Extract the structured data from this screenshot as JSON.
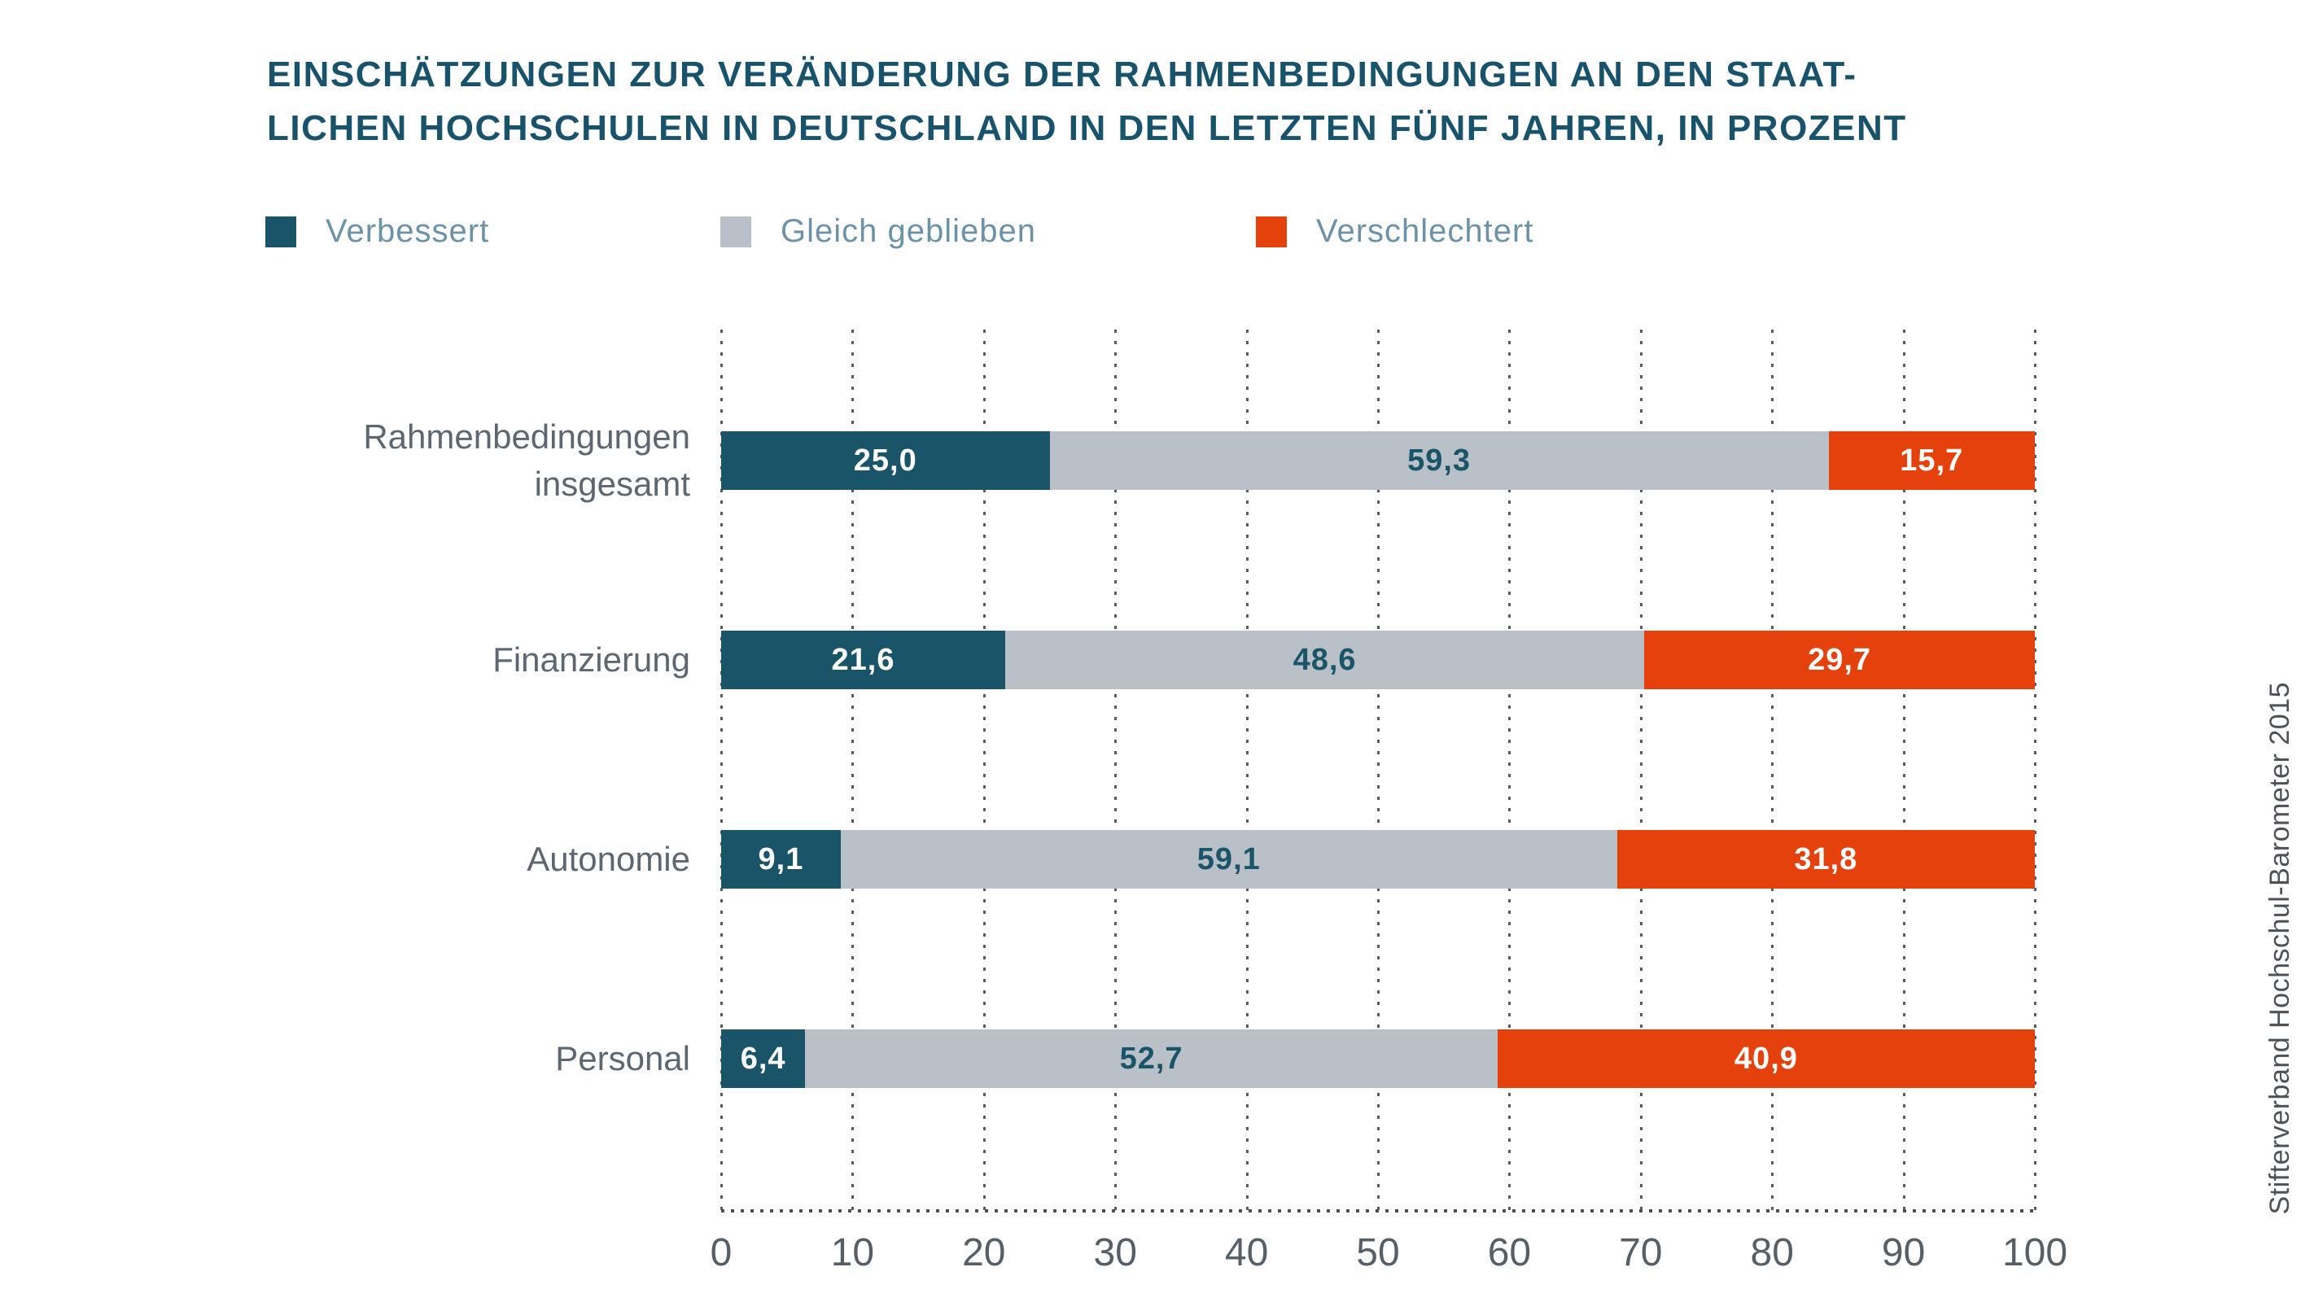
{
  "title": {
    "line1": "EINSCHÄTZUNGEN ZUR VERÄNDERUNG DER RAHMENBEDINGUNGEN AN DEN STAAT-",
    "line2": "LICHEN HOCHSCHULEN IN DEUTSCHLAND IN DEN LETZTEN FÜNF JAHREN, IN PROZENT"
  },
  "source": "Stifterverband Hochschul-Barometer 2015",
  "colors": {
    "title": "#19536B",
    "verbessert": "#1A5468",
    "gleich_geblieben": "#B9C0C7",
    "verschlechtert": "#E5410D",
    "category_label": "#5D6772",
    "axis_label": "#565E66",
    "legend_label": "#6B92A6"
  },
  "chart_data": {
    "type": "bar",
    "orientation": "horizontal",
    "stacked": true,
    "title": "Einschätzungen zur Veränderung der Rahmenbedingungen an den staatlichen Hochschulen in Deutschland in den letzten fünf Jahren, in Prozent",
    "categories": [
      "Rahmenbedingungen insgesamt",
      "Finanzierung",
      "Autonomie",
      "Personal"
    ],
    "series": [
      {
        "name": "Verbessert",
        "color": "#1A5468",
        "label_color": "#FFFFFF",
        "values": [
          25.0,
          21.6,
          9.1,
          6.4
        ]
      },
      {
        "name": "Gleich geblieben",
        "color": "#B9C0C7",
        "label_color": "#1A5468",
        "values": [
          59.3,
          48.6,
          59.1,
          52.7
        ]
      },
      {
        "name": "Verschlechtert",
        "color": "#E5410D",
        "label_color": "#FFFFFF",
        "values": [
          15.7,
          29.7,
          31.8,
          40.9
        ]
      }
    ],
    "value_label_decimal_separator": ",",
    "xlabel": "",
    "ylabel": "",
    "xlim": [
      0,
      100
    ],
    "ticks": [
      0,
      10,
      20,
      30,
      40,
      50,
      60,
      70,
      80,
      90,
      100
    ],
    "grid": "vertical-dotted",
    "legend_position": "top"
  }
}
